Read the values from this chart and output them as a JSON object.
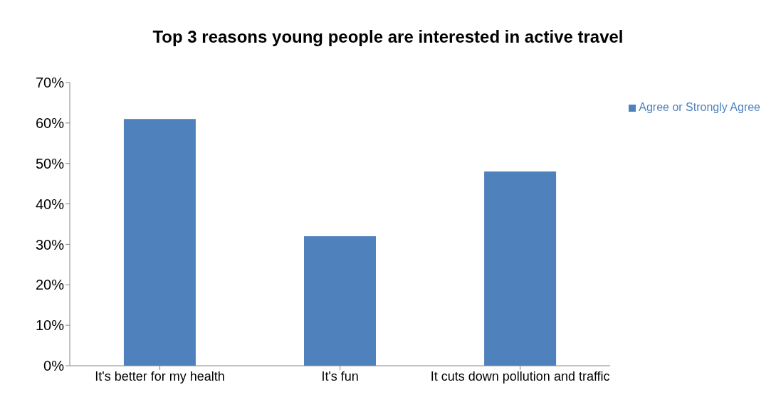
{
  "chart_data": {
    "type": "bar",
    "title": "Top 3 reasons young people are interested in active travel",
    "categories": [
      "It's better for my health",
      "It's fun",
      "It cuts down pollution and traffic"
    ],
    "series": [
      {
        "name": "Agree or Strongly Agree",
        "color": "#4f81bd",
        "values": [
          61,
          32,
          48
        ]
      }
    ],
    "ylim": [
      0,
      70
    ],
    "yticks": [
      {
        "value": 0,
        "label": "0%"
      },
      {
        "value": 10,
        "label": "10%"
      },
      {
        "value": 20,
        "label": "20%"
      },
      {
        "value": 30,
        "label": "30%"
      },
      {
        "value": 40,
        "label": "40%"
      },
      {
        "value": 50,
        "label": "50%"
      },
      {
        "value": 60,
        "label": "60%"
      },
      {
        "value": 70,
        "label": "70%"
      }
    ],
    "grid": false,
    "legend": "top right"
  }
}
